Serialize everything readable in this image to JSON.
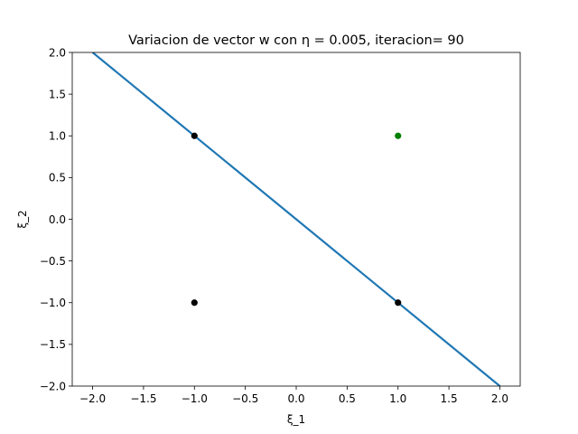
{
  "chart_data": {
    "type": "scatter",
    "title": "Variacion de vector w con η = 0.005, iteracion= 90",
    "xlabel": "ξ_1",
    "ylabel": "ξ_2",
    "xlim": [
      -2.2,
      2.2
    ],
    "ylim": [
      -2.0,
      2.0
    ],
    "xticks": [
      -2.0,
      -1.5,
      -1.0,
      -0.5,
      0.0,
      0.5,
      1.0,
      1.5,
      2.0
    ],
    "yticks": [
      -2.0,
      -1.5,
      -1.0,
      -0.5,
      0.0,
      0.5,
      1.0,
      1.5,
      2.0
    ],
    "xtick_labels": [
      "−2.0",
      "−1.5",
      "−1.0",
      "−0.5",
      "0.0",
      "0.5",
      "1.0",
      "1.5",
      "2.0"
    ],
    "ytick_labels": [
      "−2.0",
      "−1.5",
      "−1.0",
      "−0.5",
      "0.0",
      "0.5",
      "1.0",
      "1.5",
      "2.0"
    ],
    "grid": false,
    "points": [
      {
        "x": -1,
        "y": 1,
        "color": "#000000"
      },
      {
        "x": -1,
        "y": -1,
        "color": "#000000"
      },
      {
        "x": 1,
        "y": -1,
        "color": "#000000"
      },
      {
        "x": 1,
        "y": 1,
        "color": "#008000"
      }
    ],
    "line": {
      "x": [
        -2.0,
        2.0
      ],
      "y": [
        2.0,
        -2.0
      ],
      "color": "#1f77b4"
    }
  }
}
